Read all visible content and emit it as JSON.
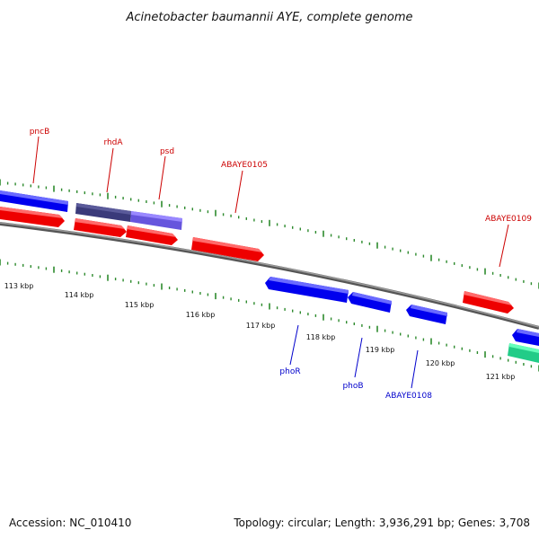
{
  "title": "Acinetobacter baumannii AYE, complete genome",
  "footer": {
    "accession": "Accession: NC_010410",
    "summary": "Topology: circular; Length: 3,936,291 bp; Genes: 3,708"
  },
  "colors": {
    "forward_gene": "#ff0000",
    "reverse_gene": "#0000ff",
    "tick": "#2d8a2d",
    "backbone": "#808080",
    "label_forward": "#cc0000",
    "label_reverse": "#0000cc"
  },
  "kbp_labels": [
    "113 kbp",
    "114 kbp",
    "115 kbp",
    "116 kbp",
    "117 kbp",
    "118 kbp",
    "119 kbp",
    "120 kbp",
    "121 kbp"
  ],
  "gene_labels_forward": [
    "pncB",
    "rhdA",
    "psd",
    "ABAYE0105",
    "ABAYE0109"
  ],
  "gene_labels_reverse": [
    "phoR",
    "phoB",
    "ABAYE0108"
  ]
}
